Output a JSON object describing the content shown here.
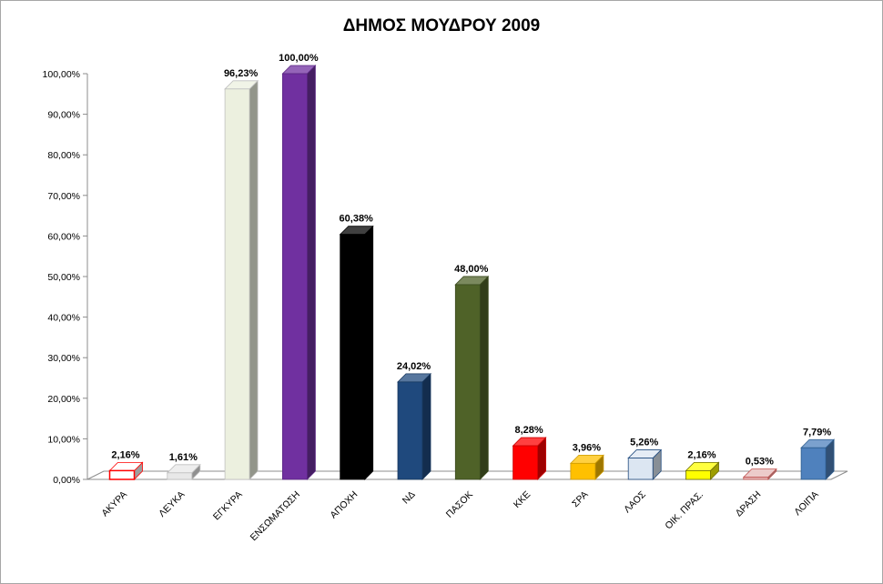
{
  "chart_data": {
    "type": "bar",
    "title": "ΔΗΜΟΣ ΜΟΥΔΡΟΥ 2009",
    "xlabel": "",
    "ylabel": "",
    "ylim": [
      0,
      100
    ],
    "yticks": [
      "0,00%",
      "10,00%",
      "20,00%",
      "30,00%",
      "40,00%",
      "50,00%",
      "60,00%",
      "70,00%",
      "80,00%",
      "90,00%",
      "100,00%"
    ],
    "categories": [
      "ΑΚΥΡΑ",
      "ΛΕΥΚΑ",
      "ΕΓΚΥΡΑ",
      "ΕΝΣΩΜΑΤΩΣΗ",
      "ΑΠΟΧΗ",
      "ΝΔ",
      "ΠΑΣΟΚ",
      "ΚΚΕ",
      "ΣΡΑ",
      "ΛΑΟΣ",
      "ΟΙΚ. ΠΡΑΣ.",
      "ΔΡΑΣΗ",
      "ΛΟΙΠΑ"
    ],
    "values": [
      2.16,
      1.61,
      96.23,
      100.0,
      60.38,
      24.02,
      48.0,
      8.28,
      3.96,
      5.26,
      2.16,
      0.53,
      7.79
    ],
    "value_labels": [
      "2,16%",
      "1,61%",
      "96,23%",
      "100,00%",
      "60,38%",
      "24,02%",
      "48,00%",
      "8,28%",
      "3,96%",
      "5,26%",
      "2,16%",
      "0,53%",
      "7,79%"
    ],
    "colors": [
      "#ffffff",
      "#e8e8e8",
      "#ecf0df",
      "#7030a0",
      "#000000",
      "#1f497d",
      "#4f6228",
      "#ff0000",
      "#ffc000",
      "#dce6f2",
      "#ffff00",
      "#e6b9b8",
      "#4f81bd"
    ],
    "edge_colors": [
      "#ff0000",
      "#bfbfbf",
      "#bfbfbf",
      "#5a2682",
      "#000000",
      "#17375e",
      "#3b4a1e",
      "#cc0000",
      "#cc9a00",
      "#1f497d",
      "#6b6b00",
      "#c0504d",
      "#2c5d8f"
    ],
    "grid": false,
    "legend": "none",
    "style": "3d-bar"
  }
}
